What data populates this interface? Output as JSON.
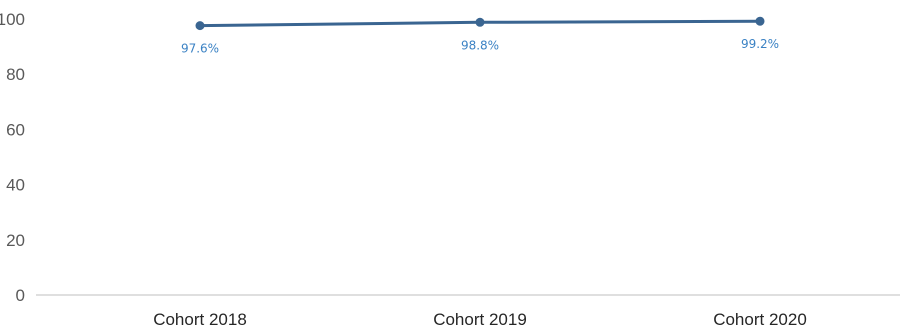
{
  "chart_data": {
    "type": "line",
    "title": "",
    "xlabel": "",
    "ylabel": "",
    "categories": [
      "Cohort 2018",
      "Cohort 2019",
      "Cohort 2020"
    ],
    "series": [
      {
        "values": [
          97.6,
          98.8,
          99.2
        ],
        "labels": [
          "97.6%",
          "98.8%",
          "99.2%"
        ]
      }
    ],
    "ylim": [
      0,
      100
    ],
    "yticks": [
      "0",
      "20",
      "40",
      "60",
      "80",
      "100"
    ],
    "grid": false,
    "legend": "none",
    "colors": {
      "line": "#3a6591",
      "marker": "#3a6591",
      "label": "#3b82c4",
      "axis": "#bfbfbf"
    }
  }
}
